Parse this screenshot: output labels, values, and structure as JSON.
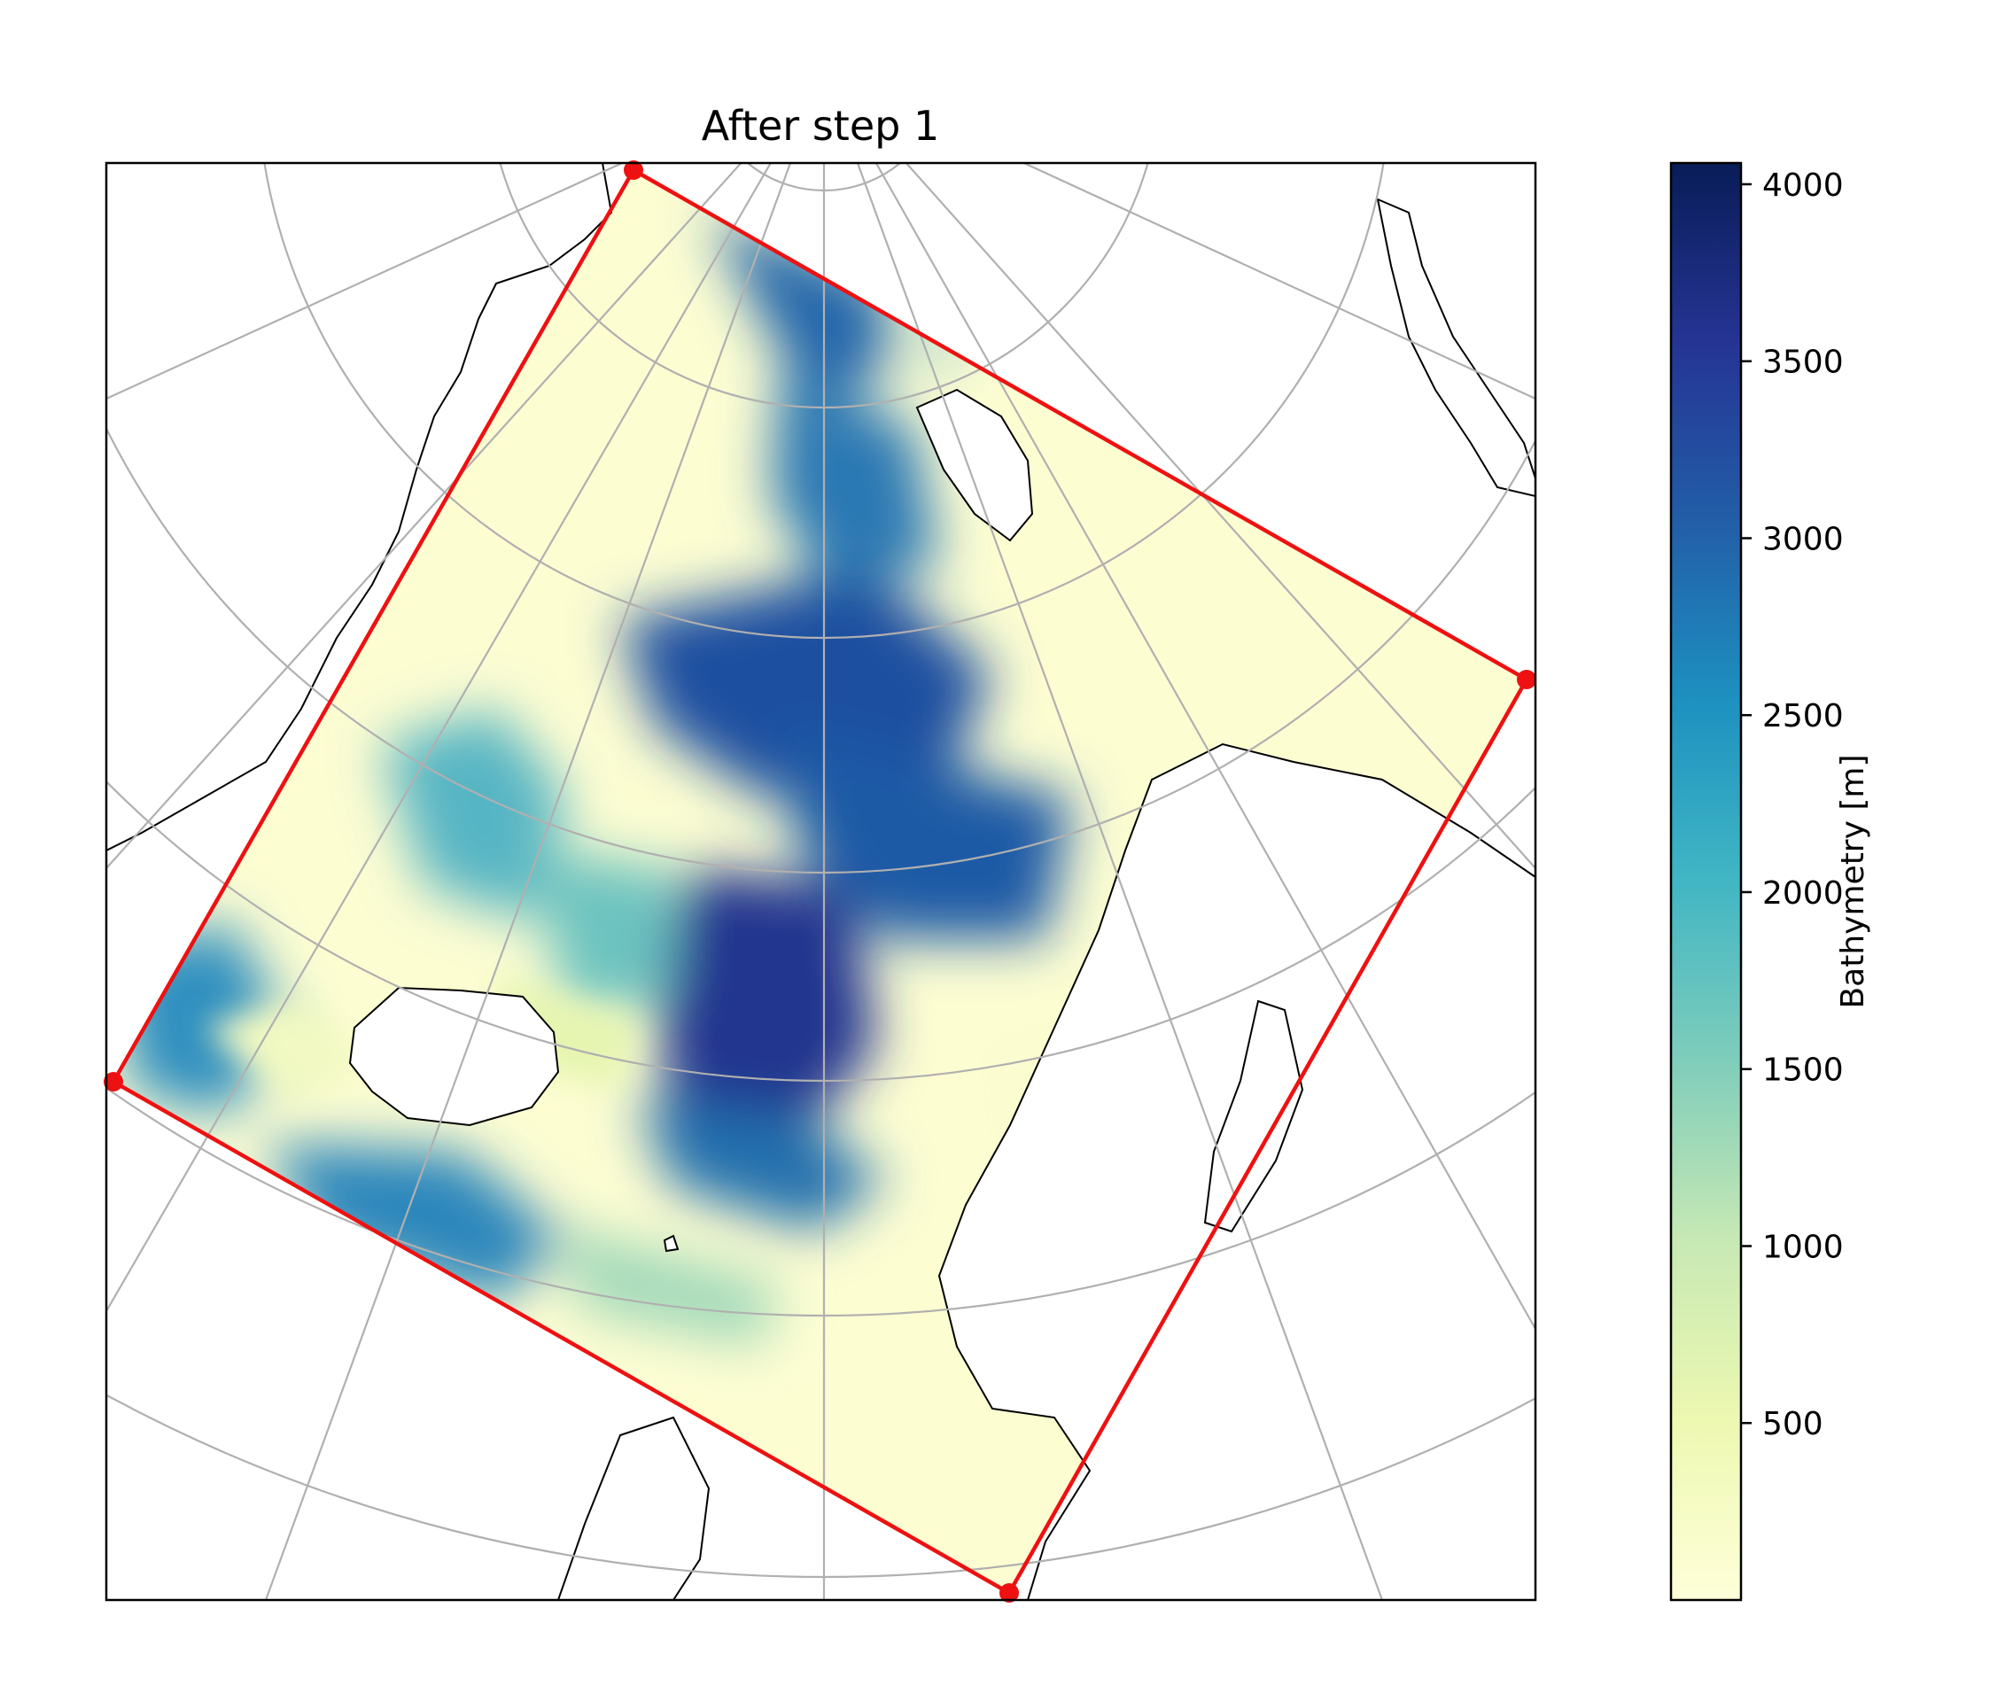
{
  "title": "After step 1",
  "colorbar": {
    "label": "Bathymetry [m]",
    "colormap": "YlGnBu",
    "range": [
      0,
      4060
    ],
    "ticks": [
      500,
      1000,
      1500,
      2000,
      2500,
      3000,
      3500,
      4000
    ],
    "tick_labels": [
      "500",
      "1000",
      "1500",
      "2000",
      "2500",
      "3000",
      "3500",
      "4000"
    ],
    "stops": [
      "#ffffd9",
      "#edf8b1",
      "#c7e9b4",
      "#7fcdbb",
      "#41b6c4",
      "#1d91c0",
      "#225ea8",
      "#253494",
      "#081d58"
    ]
  },
  "map": {
    "projection": "polar stereographic",
    "graticule": "on",
    "coastlines": "on",
    "domain_outline_color": "#ee1111",
    "gridline_color": "#b0b0b0"
  }
}
